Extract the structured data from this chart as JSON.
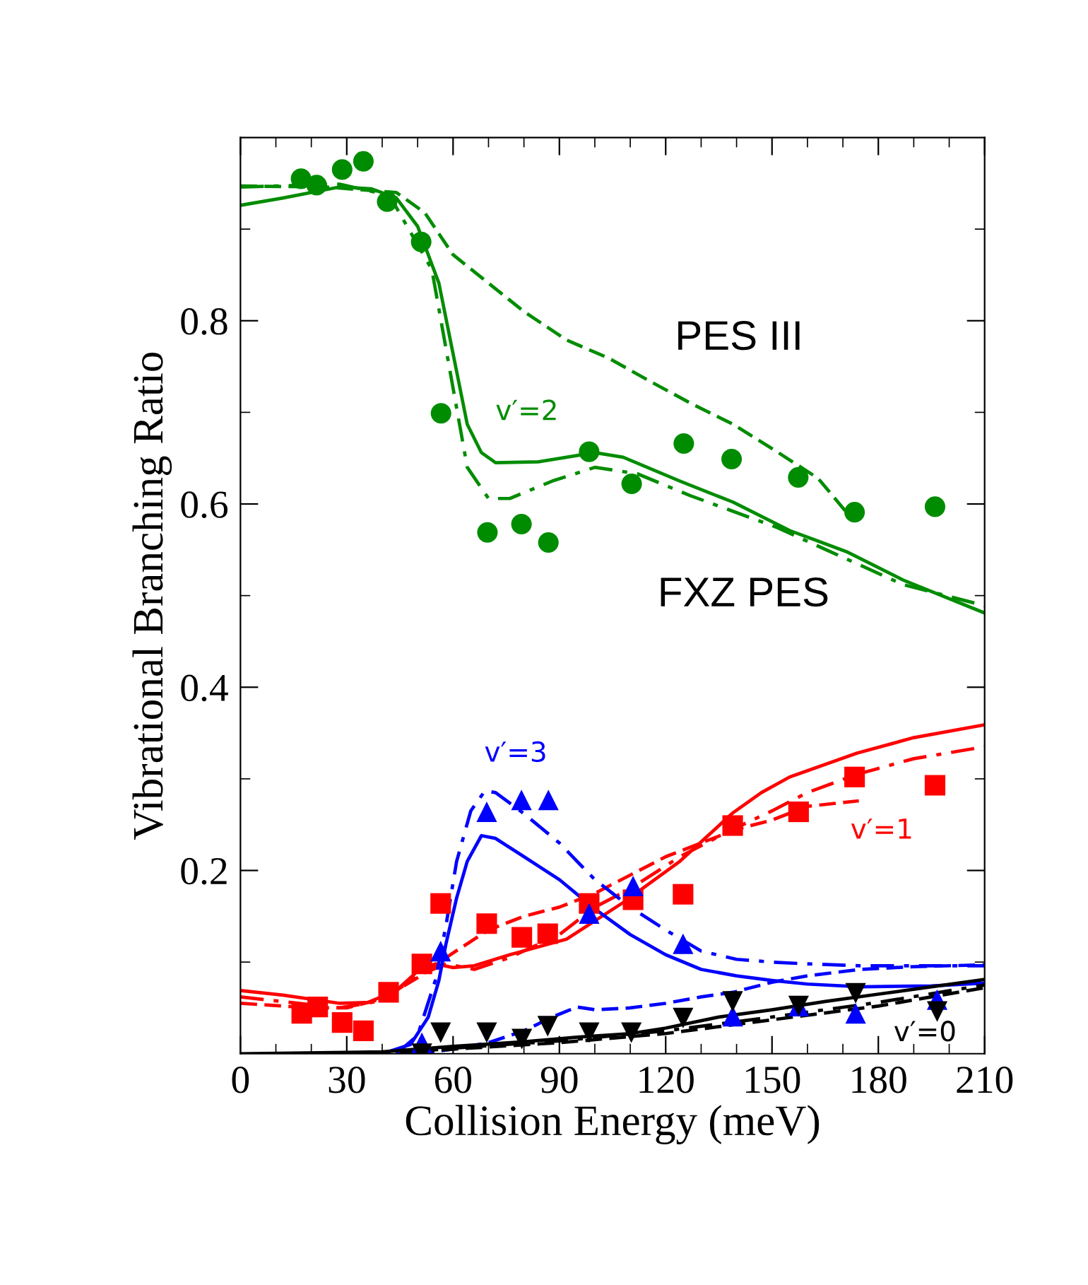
{
  "chart_data": {
    "type": "line",
    "xlabel": "Collision Energy (meV)",
    "ylabel": "Vibrational Branching Ratio",
    "xlim": [
      0,
      210
    ],
    "ylim": [
      0,
      1.0
    ],
    "xticks": [
      0,
      {
        "value": 10,
        "label": null
      },
      {
        "value": 20,
        "label": null
      },
      30,
      {
        "value": 40,
        "label": null
      },
      {
        "value": 50,
        "label": null
      },
      60,
      {
        "value": 70,
        "label": null
      },
      {
        "value": 80,
        "label": null
      },
      90,
      {
        "value": 100,
        "label": null
      },
      {
        "value": 110,
        "label": null
      },
      120,
      {
        "value": 130,
        "label": null
      },
      {
        "value": 140,
        "label": null
      },
      150,
      {
        "value": 160,
        "label": null
      },
      {
        "value": 170,
        "label": null
      },
      180,
      {
        "value": 190,
        "label": null
      },
      {
        "value": 200,
        "label": null
      },
      210
    ],
    "yticks": [
      {
        "value": 0.1,
        "label": null
      },
      0.2,
      {
        "value": 0.3,
        "label": null
      },
      0.4,
      {
        "value": 0.5,
        "label": null
      },
      0.6,
      {
        "value": 0.7,
        "label": null
      },
      0.8,
      {
        "value": 0.9,
        "label": null
      }
    ],
    "grid": false,
    "legend": false,
    "annotations": [
      "PES III",
      "FXZ PES",
      "v′=2",
      "v′=3",
      "v′=1",
      "v′=0"
    ],
    "series": [
      {
        "type": "scatter",
        "marker": "circle",
        "color": "#008c00",
        "x": [
          17.1,
          21.5,
          28.7,
          34.7,
          41.4,
          51.0,
          56.6,
          69.7,
          79.3,
          86.9,
          98.4,
          110.4,
          125.1,
          138.6,
          157.4,
          173.3,
          196.0
        ],
        "values": [
          0.955,
          0.948,
          0.965,
          0.974,
          0.93,
          0.886,
          0.699,
          0.569,
          0.578,
          0.558,
          0.657,
          0.622,
          0.666,
          0.649,
          0.629,
          0.591,
          0.597
        ]
      },
      {
        "line_style": "solid",
        "color": "#008c00",
        "x": [
          0,
          12,
          28,
          37,
          44,
          50,
          56,
          60,
          64,
          68,
          72,
          84,
          100,
          108,
          124,
          139,
          155,
          171,
          187,
          210
        ],
        "values": [
          0.926,
          0.934,
          0.946,
          0.944,
          0.934,
          0.903,
          0.841,
          0.764,
          0.687,
          0.656,
          0.645,
          0.646,
          0.656,
          0.651,
          0.625,
          0.602,
          0.571,
          0.548,
          0.517,
          0.481
        ]
      },
      {
        "line_style": "dashdot",
        "color": "#008c00",
        "x": [
          0,
          28,
          42,
          54,
          59,
          64,
          70,
          76,
          88,
          100,
          112,
          127,
          151,
          171,
          187,
          210
        ],
        "values": [
          0.946,
          0.949,
          0.937,
          0.856,
          0.748,
          0.64,
          0.606,
          0.606,
          0.625,
          0.64,
          0.633,
          0.609,
          0.575,
          0.54,
          0.512,
          0.489
        ]
      },
      {
        "line_style": "dashed",
        "color": "#008c00",
        "x": [
          0,
          24,
          44,
          52,
          60,
          70,
          80,
          92,
          104,
          116,
          127,
          139,
          151,
          163,
          171
        ],
        "values": [
          0.947,
          0.946,
          0.94,
          0.918,
          0.872,
          0.841,
          0.81,
          0.779,
          0.759,
          0.733,
          0.71,
          0.687,
          0.658,
          0.628,
          0.591
        ]
      },
      {
        "type": "scatter",
        "marker": "square",
        "color": "#ff0000",
        "x": [
          17.3,
          21.8,
          28.7,
          34.7,
          41.8,
          51.2,
          56.5,
          69.5,
          79.4,
          86.7,
          98.4,
          110.8,
          124.9,
          138.9,
          157.5,
          173.3,
          196.0
        ],
        "values": [
          0.044,
          0.051,
          0.034,
          0.025,
          0.067,
          0.098,
          0.164,
          0.142,
          0.127,
          0.131,
          0.164,
          0.168,
          0.174,
          0.249,
          0.264,
          0.302,
          0.293
        ]
      },
      {
        "line_style": "solid",
        "color": "#ff0000",
        "x": [
          0,
          12,
          28,
          36,
          44,
          50,
          55,
          60,
          66,
          76,
          92,
          108,
          124,
          139,
          147,
          155,
          174,
          190,
          210
        ],
        "values": [
          0.069,
          0.064,
          0.055,
          0.056,
          0.069,
          0.09,
          0.098,
          0.094,
          0.096,
          0.108,
          0.125,
          0.165,
          0.21,
          0.263,
          0.285,
          0.302,
          0.328,
          0.345,
          0.359
        ]
      },
      {
        "line_style": "dashed",
        "color": "#ff0000",
        "x": [
          0,
          20,
          30,
          40,
          50,
          60,
          70,
          80,
          90,
          100,
          110,
          120,
          130,
          140,
          150,
          160,
          174.5
        ],
        "values": [
          0.055,
          0.05,
          0.05,
          0.06,
          0.083,
          0.11,
          0.135,
          0.15,
          0.16,
          0.175,
          0.195,
          0.215,
          0.23,
          0.245,
          0.255,
          0.27,
          0.276
        ]
      },
      {
        "line_style": "dashdot",
        "color": "#ff0000",
        "x": [
          0,
          28,
          40,
          50,
          58,
          66,
          76,
          90,
          100,
          110,
          124,
          139,
          150,
          160,
          174,
          190,
          210
        ],
        "values": [
          0.062,
          0.05,
          0.058,
          0.085,
          0.098,
          0.092,
          0.105,
          0.13,
          0.16,
          0.18,
          0.215,
          0.245,
          0.265,
          0.285,
          0.305,
          0.322,
          0.335
        ]
      },
      {
        "type": "scatter",
        "marker": "triangle",
        "color": "#0000ff",
        "x": [
          51.2,
          56.5,
          69.5,
          79.3,
          86.9,
          98.4,
          110.8,
          124.9,
          138.9,
          157.5,
          173.6,
          196.6
        ],
        "values": [
          0.012,
          0.112,
          0.264,
          0.277,
          0.277,
          0.153,
          0.183,
          0.12,
          0.041,
          0.052,
          0.044,
          0.059
        ]
      },
      {
        "line_style": "solid",
        "color": "#0000ff",
        "x": [
          40,
          48,
          53,
          56,
          58,
          61,
          64,
          68,
          72,
          80,
          90,
          100,
          110,
          120,
          130,
          140,
          150,
          160,
          175,
          195,
          210
        ],
        "values": [
          0.0,
          0.01,
          0.04,
          0.08,
          0.12,
          0.17,
          0.21,
          0.238,
          0.235,
          0.215,
          0.19,
          0.158,
          0.13,
          0.108,
          0.092,
          0.085,
          0.08,
          0.076,
          0.073,
          0.074,
          0.077
        ]
      },
      {
        "line_style": "dashdot",
        "color": "#0000ff",
        "x": [
          44,
          50,
          55,
          58,
          61,
          65,
          69,
          72,
          80,
          90,
          100,
          110,
          120,
          130,
          140,
          150,
          160,
          175,
          210
        ],
        "values": [
          0.0,
          0.02,
          0.08,
          0.14,
          0.21,
          0.265,
          0.287,
          0.285,
          0.262,
          0.23,
          0.19,
          0.16,
          0.135,
          0.112,
          0.103,
          0.1,
          0.098,
          0.096,
          0.096
        ]
      },
      {
        "line_style": "dashed",
        "color": "#0000ff",
        "x": [
          50,
          60,
          70,
          80,
          88,
          95,
          100,
          110,
          120,
          130,
          139,
          150,
          160,
          175,
          190,
          210
        ],
        "values": [
          0.0,
          0.005,
          0.012,
          0.025,
          0.04,
          0.051,
          0.048,
          0.05,
          0.055,
          0.062,
          0.067,
          0.078,
          0.085,
          0.092,
          0.095,
          0.097
        ]
      },
      {
        "type": "scatter",
        "marker": "triangle_down",
        "color": "#000000",
        "x": [
          51.2,
          56.5,
          69.5,
          79.4,
          86.7,
          98.4,
          110.3,
          124.9,
          138.9,
          157.5,
          173.6,
          196.6
        ],
        "values": [
          0.0,
          0.023,
          0.023,
          0.016,
          0.03,
          0.023,
          0.023,
          0.039,
          0.057,
          0.052,
          0.066,
          0.046
        ]
      },
      {
        "line_style": "solid",
        "color": "#000000",
        "x": [
          0,
          40,
          60,
          80,
          95,
          110,
          120,
          135,
          150,
          165,
          180,
          195,
          210
        ],
        "values": [
          0.0,
          0.002,
          0.008,
          0.013,
          0.018,
          0.022,
          0.028,
          0.04,
          0.048,
          0.057,
          0.065,
          0.073,
          0.081
        ]
      },
      {
        "line_style": "dashed",
        "color": "#000000",
        "x": [
          50,
          60,
          90,
          120,
          150,
          180,
          210
        ],
        "values": [
          0.002,
          0.005,
          0.012,
          0.022,
          0.037,
          0.052,
          0.072
        ]
      },
      {
        "line_style": "dashdot",
        "color": "#000000",
        "x": [
          45,
          60,
          90,
          120,
          150,
          180,
          210
        ],
        "values": [
          0.001,
          0.006,
          0.014,
          0.025,
          0.04,
          0.056,
          0.075
        ]
      }
    ]
  }
}
